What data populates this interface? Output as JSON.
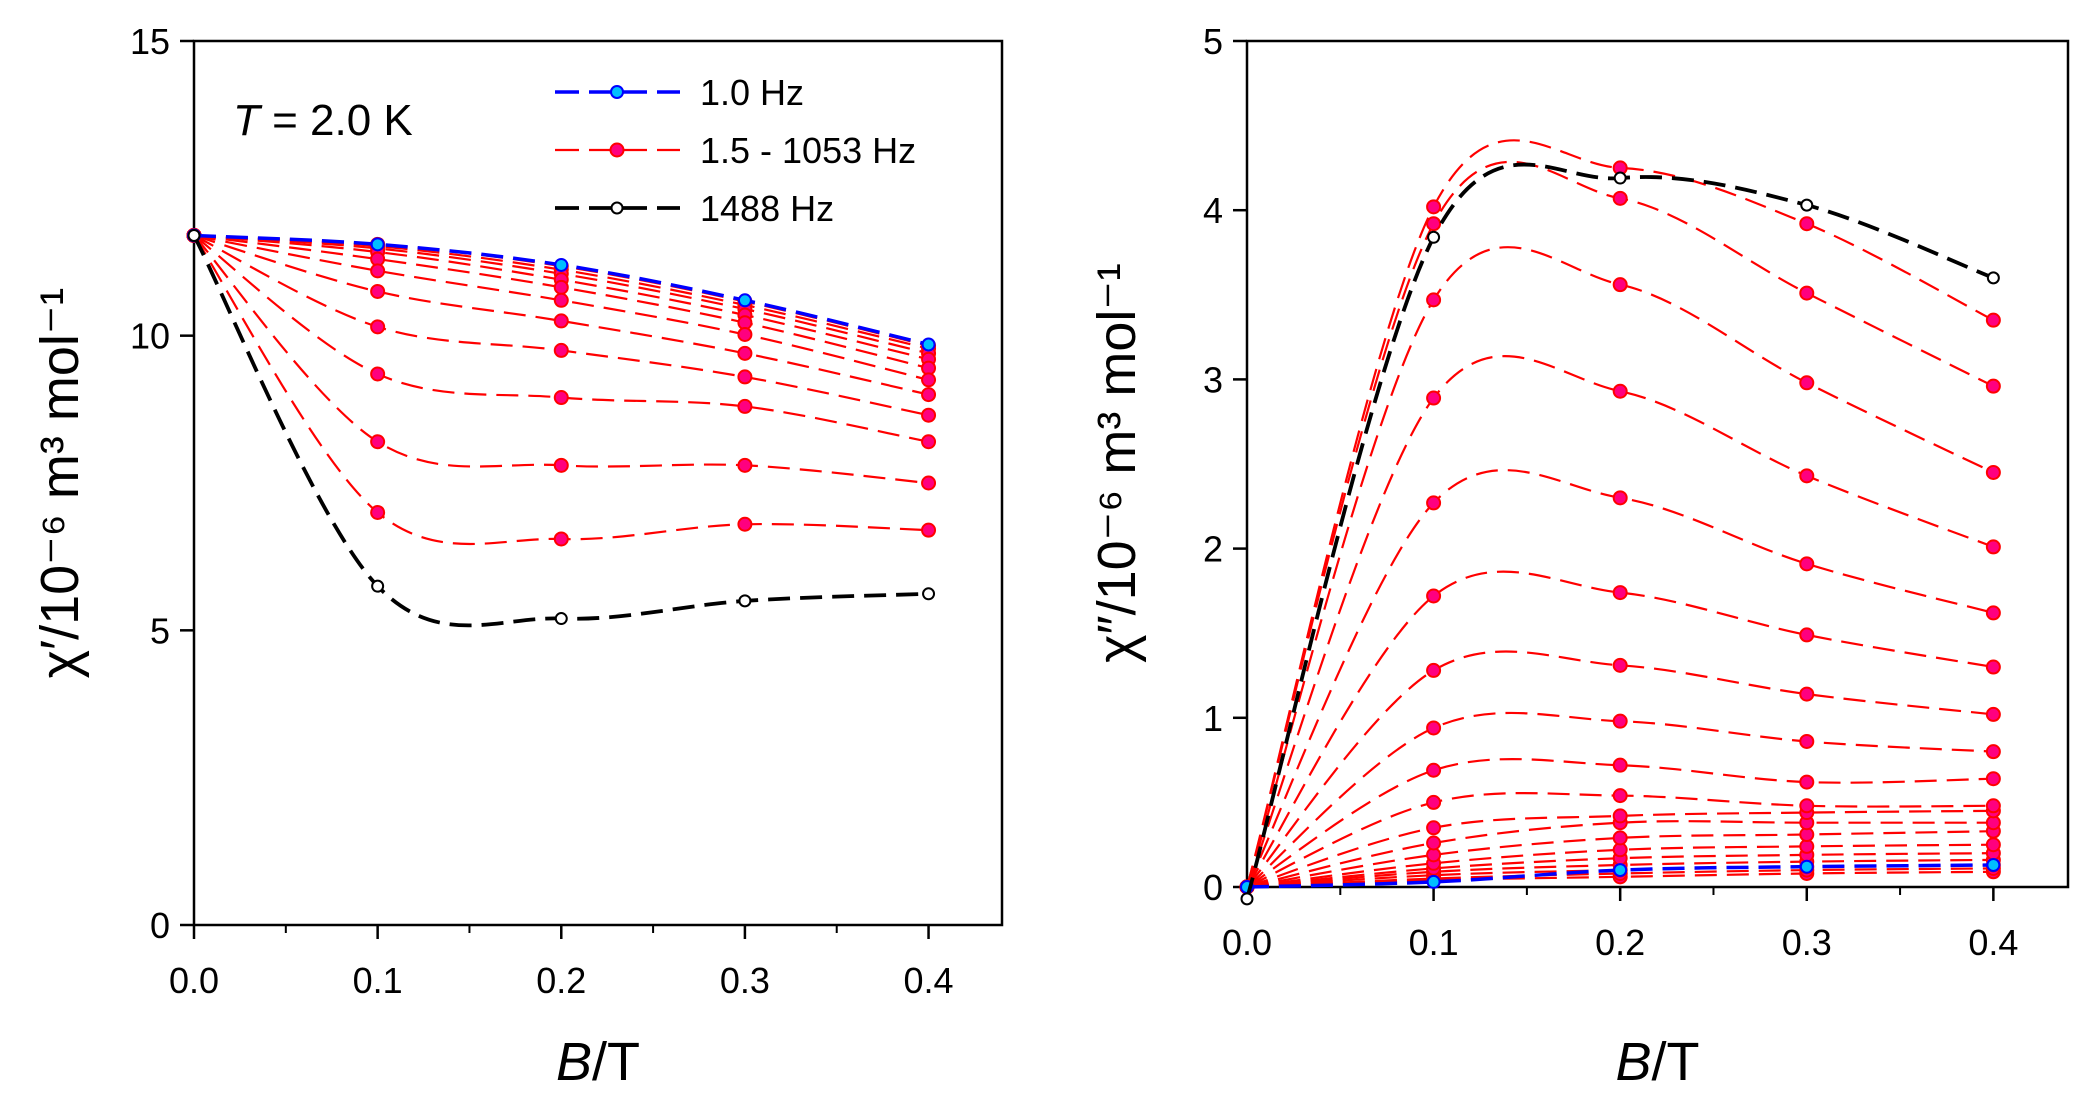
{
  "chart_data": [
    {
      "type": "line",
      "panel": "left",
      "ylabel": "χ′/10⁻⁶ m³ mol⁻¹",
      "xlabel": "B/T",
      "xlim": [
        0.0,
        0.44
      ],
      "ylim": [
        0,
        15
      ],
      "xticks": [
        "0.0",
        "0.1",
        "0.2",
        "0.3",
        "0.4"
      ],
      "yticks": [
        "0",
        "5",
        "10",
        "15"
      ],
      "annotation": "T = 2.0 K",
      "legend": {
        "placement": "top-right",
        "entries": [
          {
            "label": "1.0 Hz",
            "color": "#0000ff",
            "marker_fill": "#00bfff"
          },
          {
            "label": "1.5 - 1053  Hz",
            "color": "#ff0000",
            "marker_fill": "#ff007f"
          },
          {
            "label": "1488 Hz",
            "color": "#000000",
            "marker_fill": "#ffffff"
          }
        ]
      },
      "x": [
        0.0,
        0.1,
        0.2,
        0.3,
        0.4
      ],
      "series": [
        {
          "name": "1.0 Hz",
          "group": "blue",
          "values": [
            11.7,
            11.55,
            11.2,
            10.6,
            9.85
          ]
        },
        {
          "group": "red",
          "values": [
            11.7,
            11.55,
            11.18,
            10.58,
            9.83
          ]
        },
        {
          "group": "red",
          "values": [
            11.7,
            11.52,
            11.12,
            10.52,
            9.78
          ]
        },
        {
          "group": "red",
          "values": [
            11.7,
            11.48,
            11.05,
            10.45,
            9.7
          ]
        },
        {
          "group": "red",
          "values": [
            11.7,
            11.42,
            10.95,
            10.35,
            9.6
          ]
        },
        {
          "group": "red",
          "values": [
            11.7,
            11.3,
            10.82,
            10.22,
            9.45
          ]
        },
        {
          "group": "red",
          "values": [
            11.7,
            11.1,
            10.6,
            10.02,
            9.25
          ]
        },
        {
          "group": "red",
          "values": [
            11.7,
            10.75,
            10.25,
            9.7,
            9.0
          ]
        },
        {
          "group": "red",
          "values": [
            11.7,
            10.15,
            9.75,
            9.3,
            8.65
          ]
        },
        {
          "group": "red",
          "values": [
            11.7,
            9.35,
            8.95,
            8.8,
            8.2
          ]
        },
        {
          "group": "red",
          "values": [
            11.7,
            8.2,
            7.8,
            7.8,
            7.5
          ]
        },
        {
          "group": "red",
          "values": [
            11.7,
            7.0,
            6.55,
            6.8,
            6.7
          ]
        },
        {
          "name": "1488 Hz",
          "group": "black",
          "values": [
            11.7,
            5.75,
            5.2,
            5.5,
            5.62
          ]
        }
      ]
    },
    {
      "type": "line",
      "panel": "right",
      "ylabel": "χ″/10⁻⁶ m³ mol⁻¹",
      "xlabel": "B/T",
      "xlim": [
        0.0,
        0.44
      ],
      "ylim": [
        0,
        5
      ],
      "xticks": [
        "0.0",
        "0.1",
        "0.2",
        "0.3",
        "0.4"
      ],
      "yticks": [
        "0",
        "1",
        "2",
        "3",
        "4",
        "5"
      ],
      "x": [
        0.0,
        0.1,
        0.2,
        0.3,
        0.4
      ],
      "series": [
        {
          "name": "1.0 Hz",
          "group": "blue",
          "values": [
            0.0,
            0.03,
            0.1,
            0.12,
            0.13
          ]
        },
        {
          "group": "red",
          "values": [
            0.0,
            0.04,
            0.06,
            0.08,
            0.09
          ]
        },
        {
          "group": "red",
          "values": [
            0.0,
            0.05,
            0.08,
            0.1,
            0.11
          ]
        },
        {
          "group": "red",
          "values": [
            0.0,
            0.07,
            0.1,
            0.12,
            0.13
          ]
        },
        {
          "group": "red",
          "values": [
            0.0,
            0.09,
            0.13,
            0.15,
            0.16
          ]
        },
        {
          "group": "red",
          "values": [
            0.0,
            0.11,
            0.17,
            0.19,
            0.2
          ]
        },
        {
          "group": "red",
          "values": [
            0.0,
            0.14,
            0.22,
            0.24,
            0.25
          ]
        },
        {
          "group": "red",
          "values": [
            0.0,
            0.19,
            0.29,
            0.31,
            0.33
          ]
        },
        {
          "group": "red",
          "values": [
            0.0,
            0.26,
            0.38,
            0.38,
            0.38
          ]
        },
        {
          "group": "red",
          "values": [
            0.0,
            0.35,
            0.42,
            0.44,
            0.45
          ]
        },
        {
          "group": "red",
          "values": [
            0.0,
            0.5,
            0.54,
            0.48,
            0.48
          ]
        },
        {
          "group": "red",
          "values": [
            0.0,
            0.69,
            0.72,
            0.62,
            0.64
          ]
        },
        {
          "group": "red",
          "values": [
            0.0,
            0.94,
            0.98,
            0.86,
            0.8
          ]
        },
        {
          "group": "red",
          "values": [
            0.0,
            1.28,
            1.31,
            1.14,
            1.02
          ]
        },
        {
          "group": "red",
          "values": [
            0.0,
            1.72,
            1.74,
            1.49,
            1.3
          ]
        },
        {
          "group": "red",
          "values": [
            0.0,
            2.27,
            2.3,
            1.91,
            1.62
          ]
        },
        {
          "group": "red",
          "values": [
            0.0,
            2.89,
            2.93,
            2.43,
            2.01
          ]
        },
        {
          "group": "red",
          "values": [
            0.0,
            3.47,
            3.56,
            2.98,
            2.45
          ]
        },
        {
          "group": "red",
          "values": [
            0.0,
            3.92,
            4.07,
            3.51,
            2.96
          ]
        },
        {
          "group": "red",
          "values": [
            0.0,
            4.02,
            4.25,
            3.92,
            3.35
          ]
        },
        {
          "name": "1488 Hz",
          "group": "black",
          "values": [
            -0.07,
            3.84,
            4.19,
            4.03,
            3.6
          ]
        }
      ]
    }
  ]
}
